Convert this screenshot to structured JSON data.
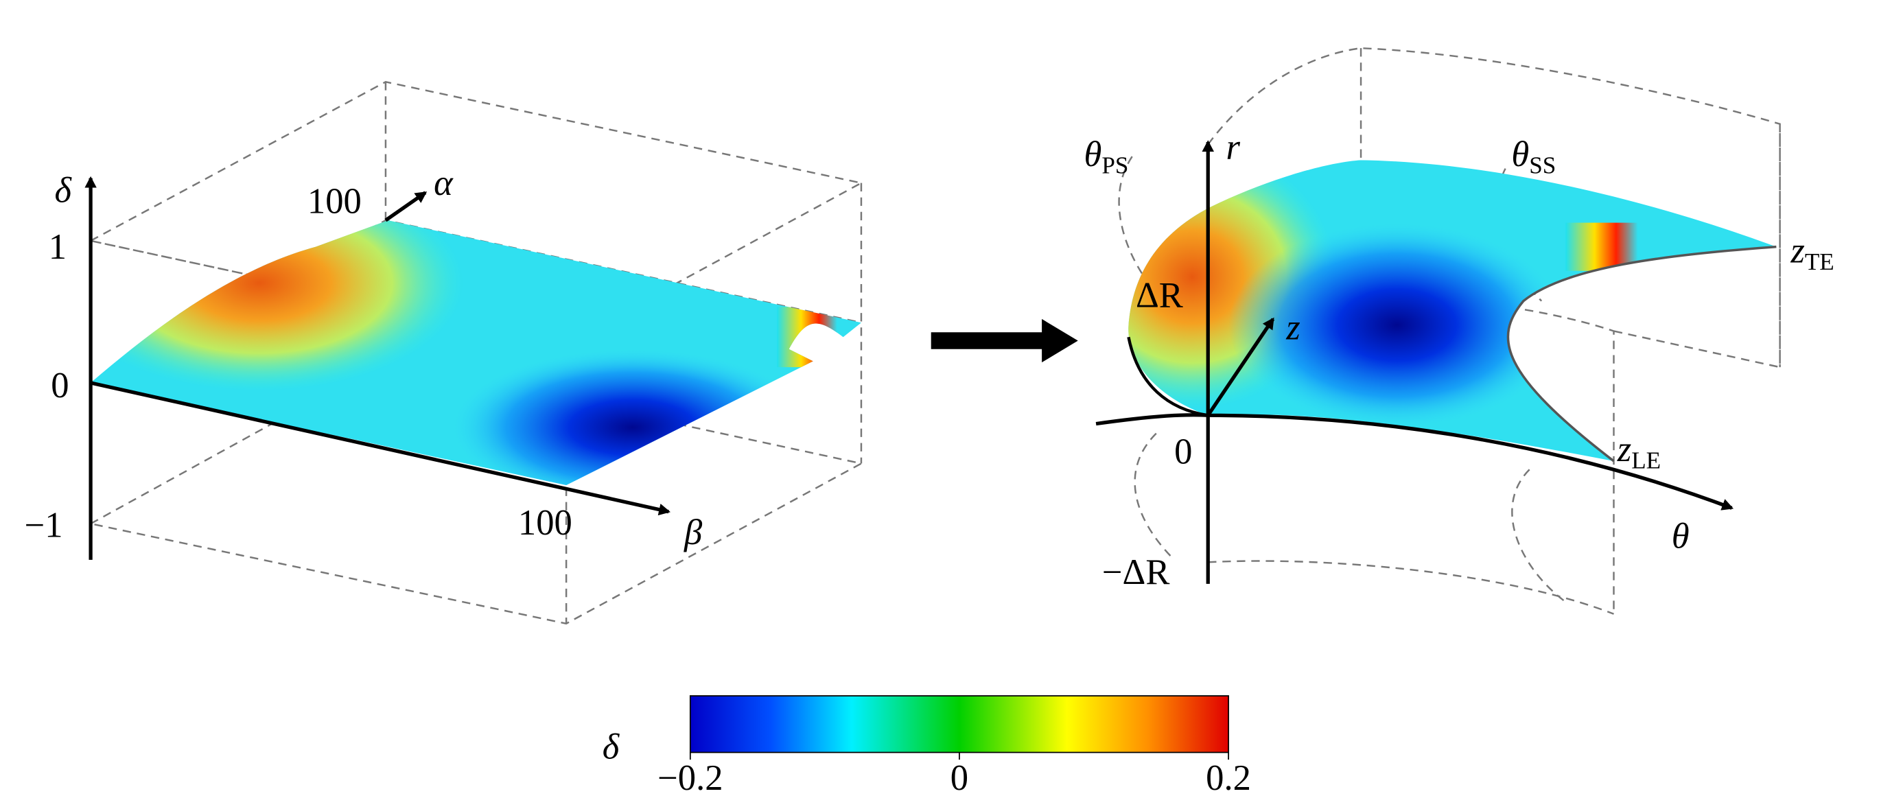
{
  "left_plot": {
    "axis_delta": "δ",
    "axis_alpha": "α",
    "axis_beta": "β",
    "alpha_end": "100",
    "beta_end": "100",
    "delta_top": "1",
    "delta_zero": "0",
    "delta_bottom": "−1"
  },
  "right_plot": {
    "axis_r": "r",
    "axis_z": "z",
    "axis_theta": "θ",
    "origin": "0",
    "r_top": "ΔR",
    "r_bottom": "−ΔR",
    "theta_ps": {
      "symbol": "θ",
      "subscript": "PS"
    },
    "theta_ss": {
      "symbol": "θ",
      "subscript": "SS"
    },
    "z_te": {
      "symbol": "z",
      "subscript": "TE"
    },
    "z_le": {
      "symbol": "z",
      "subscript": "LE"
    }
  },
  "colorbar": {
    "label": "δ",
    "lim": [
      -0.2,
      0.2
    ],
    "ticks": [
      {
        "value": -0.2,
        "label": "−0.2"
      },
      0,
      0.2
    ]
  }
}
